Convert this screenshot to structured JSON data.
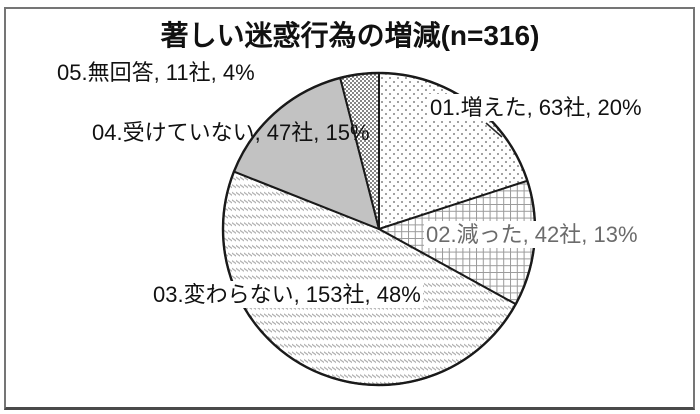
{
  "chart_data": {
    "type": "pie",
    "title": "著しい迷惑行為の増減(n=316)",
    "n_total": "n=316",
    "direction": "clockwise",
    "start_angle_deg": 0,
    "legend_position": "none",
    "slices": [
      {
        "id": "01",
        "name": "増えた",
        "count": 63,
        "percent": 20,
        "pattern": "dots-sparse",
        "label": "01.増えた, 63社, 20%"
      },
      {
        "id": "02",
        "name": "減った",
        "count": 42,
        "percent": 13,
        "pattern": "grid",
        "label": "02.減った, 42社, 13%"
      },
      {
        "id": "03",
        "name": "変わらない",
        "count": 153,
        "percent": 48,
        "pattern": "diagonal-dashes",
        "label": "03.変わらない, 153社, 48%"
      },
      {
        "id": "04",
        "name": "受けていない",
        "count": 47,
        "percent": 15,
        "pattern": "solid-gray",
        "label": "04.受けていない, 47社, 15%"
      },
      {
        "id": "05",
        "name": "無回答",
        "count": 11,
        "percent": 4,
        "pattern": "dots-dense",
        "label": "05.無回答, 11社, 4%"
      }
    ],
    "colors": {
      "solid_gray": "#c2c2c2",
      "outline": "#1a1a1a",
      "pattern_ink": "#8f8f8f",
      "label_gray_text": "#6b6b6b",
      "frame_border": "#757575"
    }
  }
}
